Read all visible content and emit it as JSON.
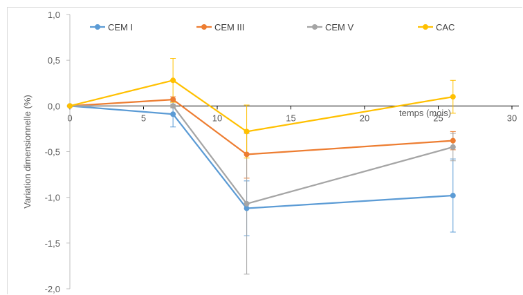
{
  "chart_data": {
    "type": "line",
    "title": "",
    "xlabel": "temps (mois)",
    "ylabel": "Variation dimensionnelle (%)",
    "xlim": [
      0,
      30
    ],
    "ylim": [
      -2.0,
      1.0
    ],
    "x_ticks": [
      "0",
      "5",
      "10",
      "15",
      "20",
      "25",
      "30"
    ],
    "y_ticks": [
      "1,0",
      "0,5",
      "0,0",
      "-0,5",
      "-1,0",
      "-1,5",
      "-2,0"
    ],
    "legend_position": "top",
    "series": [
      {
        "name": "CEM I",
        "color": "#5b9bd5",
        "points": [
          {
            "x": 0,
            "y": 0.0,
            "err": 0
          },
          {
            "x": 7,
            "y": -0.09,
            "err": 0.14
          },
          {
            "x": 12,
            "y": -1.12,
            "err": 0.3
          },
          {
            "x": 26,
            "y": -0.98,
            "err": 0.4
          }
        ]
      },
      {
        "name": "CEM III",
        "color": "#ed7d31",
        "points": [
          {
            "x": 0,
            "y": 0.0,
            "err": 0
          },
          {
            "x": 7,
            "y": 0.07,
            "err": 0.03
          },
          {
            "x": 12,
            "y": -0.53,
            "err": 0.26
          },
          {
            "x": 26,
            "y": -0.38,
            "err": 0.1
          }
        ]
      },
      {
        "name": "CEM V",
        "color": "#a5a5a5",
        "points": [
          {
            "x": 0,
            "y": 0.0,
            "err": 0
          },
          {
            "x": 7,
            "y": 0.0,
            "err": 0.02
          },
          {
            "x": 12,
            "y": -1.07,
            "err": 0.77
          },
          {
            "x": 26,
            "y": -0.45,
            "err": 0.15
          }
        ]
      },
      {
        "name": "CAC",
        "color": "#ffc000",
        "points": [
          {
            "x": 0,
            "y": 0.0,
            "err": 0
          },
          {
            "x": 7,
            "y": 0.28,
            "err": 0.24
          },
          {
            "x": 12,
            "y": -0.28,
            "err": 0.29
          },
          {
            "x": 26,
            "y": 0.1,
            "err": 0.18
          }
        ]
      }
    ]
  }
}
